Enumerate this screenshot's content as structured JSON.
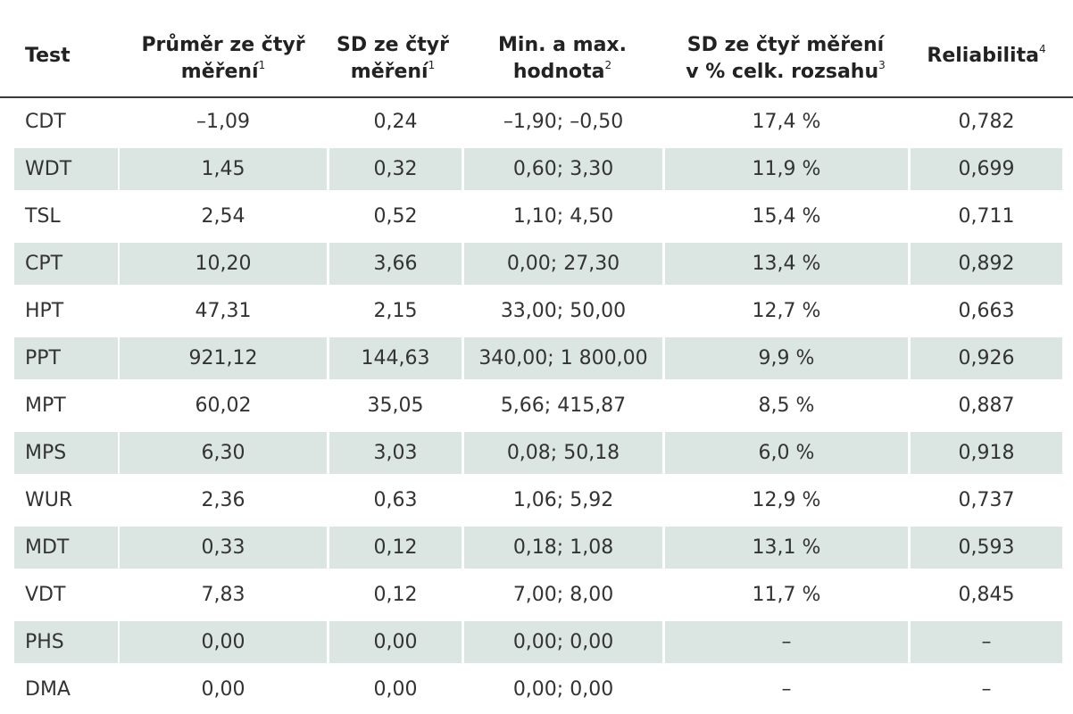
{
  "headers": {
    "test": "Test",
    "mean_line1": "Průměr ze čtyř",
    "mean_line2": "měření",
    "mean_sup": "1",
    "sd_line1": "SD ze čtyř",
    "sd_line2": "měření",
    "sd_sup": "1",
    "minmax_line1": "Min. a max.",
    "minmax_line2": "hodnota",
    "minmax_sup": "2",
    "sdpct_line1": "SD ze čtyř měření",
    "sdpct_line2": "v % celk. rozsahu",
    "sdpct_sup": "3",
    "rel": "Reliabilita",
    "rel_sup": "4"
  },
  "rows": [
    {
      "test": "CDT",
      "mean": "–1,09",
      "sd": "0,24",
      "minmax": "–1,90; –0,50",
      "sdpct": "17,4 %",
      "rel": "0,782"
    },
    {
      "test": "WDT",
      "mean": "1,45",
      "sd": "0,32",
      "minmax": "0,60; 3,30",
      "sdpct": "11,9 %",
      "rel": "0,699"
    },
    {
      "test": "TSL",
      "mean": "2,54",
      "sd": "0,52",
      "minmax": "1,10; 4,50",
      "sdpct": "15,4 %",
      "rel": "0,711"
    },
    {
      "test": "CPT",
      "mean": "10,20",
      "sd": "3,66",
      "minmax": "0,00; 27,30",
      "sdpct": "13,4 %",
      "rel": "0,892"
    },
    {
      "test": "HPT",
      "mean": "47,31",
      "sd": "2,15",
      "minmax": "33,00; 50,00",
      "sdpct": "12,7 %",
      "rel": "0,663"
    },
    {
      "test": "PPT",
      "mean": "921,12",
      "sd": "144,63",
      "minmax": "340,00; 1 800,00",
      "sdpct": "9,9 %",
      "rel": "0,926"
    },
    {
      "test": "MPT",
      "mean": "60,02",
      "sd": "35,05",
      "minmax": "5,66; 415,87",
      "sdpct": "8,5 %",
      "rel": "0,887"
    },
    {
      "test": "MPS",
      "mean": "6,30",
      "sd": "3,03",
      "minmax": "0,08; 50,18",
      "sdpct": "6,0 %",
      "rel": "0,918"
    },
    {
      "test": "WUR",
      "mean": "2,36",
      "sd": "0,63",
      "minmax": "1,06; 5,92",
      "sdpct": "12,9 %",
      "rel": "0,737"
    },
    {
      "test": "MDT",
      "mean": "0,33",
      "sd": "0,12",
      "minmax": "0,18; 1,08",
      "sdpct": "13,1 %",
      "rel": "0,593"
    },
    {
      "test": "VDT",
      "mean": "7,83",
      "sd": "0,12",
      "minmax": "7,00; 8,00",
      "sdpct": "11,7 %",
      "rel": "0,845"
    },
    {
      "test": "PHS",
      "mean": "0,00",
      "sd": "0,00",
      "minmax": "0,00; 0,00",
      "sdpct": "–",
      "rel": "–"
    },
    {
      "test": "DMA",
      "mean": "0,00",
      "sd": "0,00",
      "minmax": "0,00; 0,00",
      "sdpct": "–",
      "rel": "–"
    }
  ],
  "colors": {
    "shaded_row": "#dbe6e3",
    "header_rule": "#3a3a3a",
    "text": "#333333"
  }
}
